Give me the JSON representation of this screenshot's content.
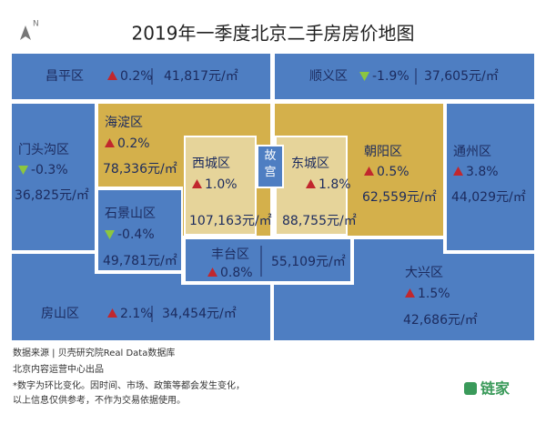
{
  "title": "2019年一季度北京二手房房价地图",
  "north": "N",
  "landmark": "故宫",
  "districts": [
    {
      "name": "昌平区",
      "change": "0.2%",
      "price": "41,817元/㎡"
    },
    {
      "name": "顺义区",
      "change": "-1.9%",
      "price": "37,605元/㎡"
    },
    {
      "name": "门头沟区",
      "change": "-0.3%",
      "price": "36,825元/㎡"
    },
    {
      "name": "海淀区",
      "change": "0.2%",
      "price": "78,336元/㎡"
    },
    {
      "name": "石景山区",
      "change": "-0.4%",
      "price": "49,781元/㎡"
    },
    {
      "name": "西城区",
      "change": "1.0%",
      "price": "107,163元/㎡"
    },
    {
      "name": "东城区",
      "change": "1.8%",
      "price": "88,755元/㎡"
    },
    {
      "name": "朝阳区",
      "change": "0.5%",
      "price": "62,559元/㎡"
    },
    {
      "name": "通州区",
      "change": "3.8%",
      "price": "44,029元/㎡"
    },
    {
      "name": "丰台区",
      "change": "0.8%",
      "price": "55,109元/㎡"
    },
    {
      "name": "房山区",
      "change": "2.1%",
      "price": "34,454元/㎡"
    },
    {
      "name": "大兴区",
      "change": "1.5%",
      "price": "42,686元/㎡"
    }
  ],
  "footer": {
    "lines": [
      "数据来源 | 贝壳研究院Real Data数据库",
      "北京内容运营中心出品",
      "*数字为环比变化。因时间、市场、政策等都会发生变化，",
      "以上信息仅供参考，不作为交易依据使用。"
    ],
    "logo": "链家"
  }
}
